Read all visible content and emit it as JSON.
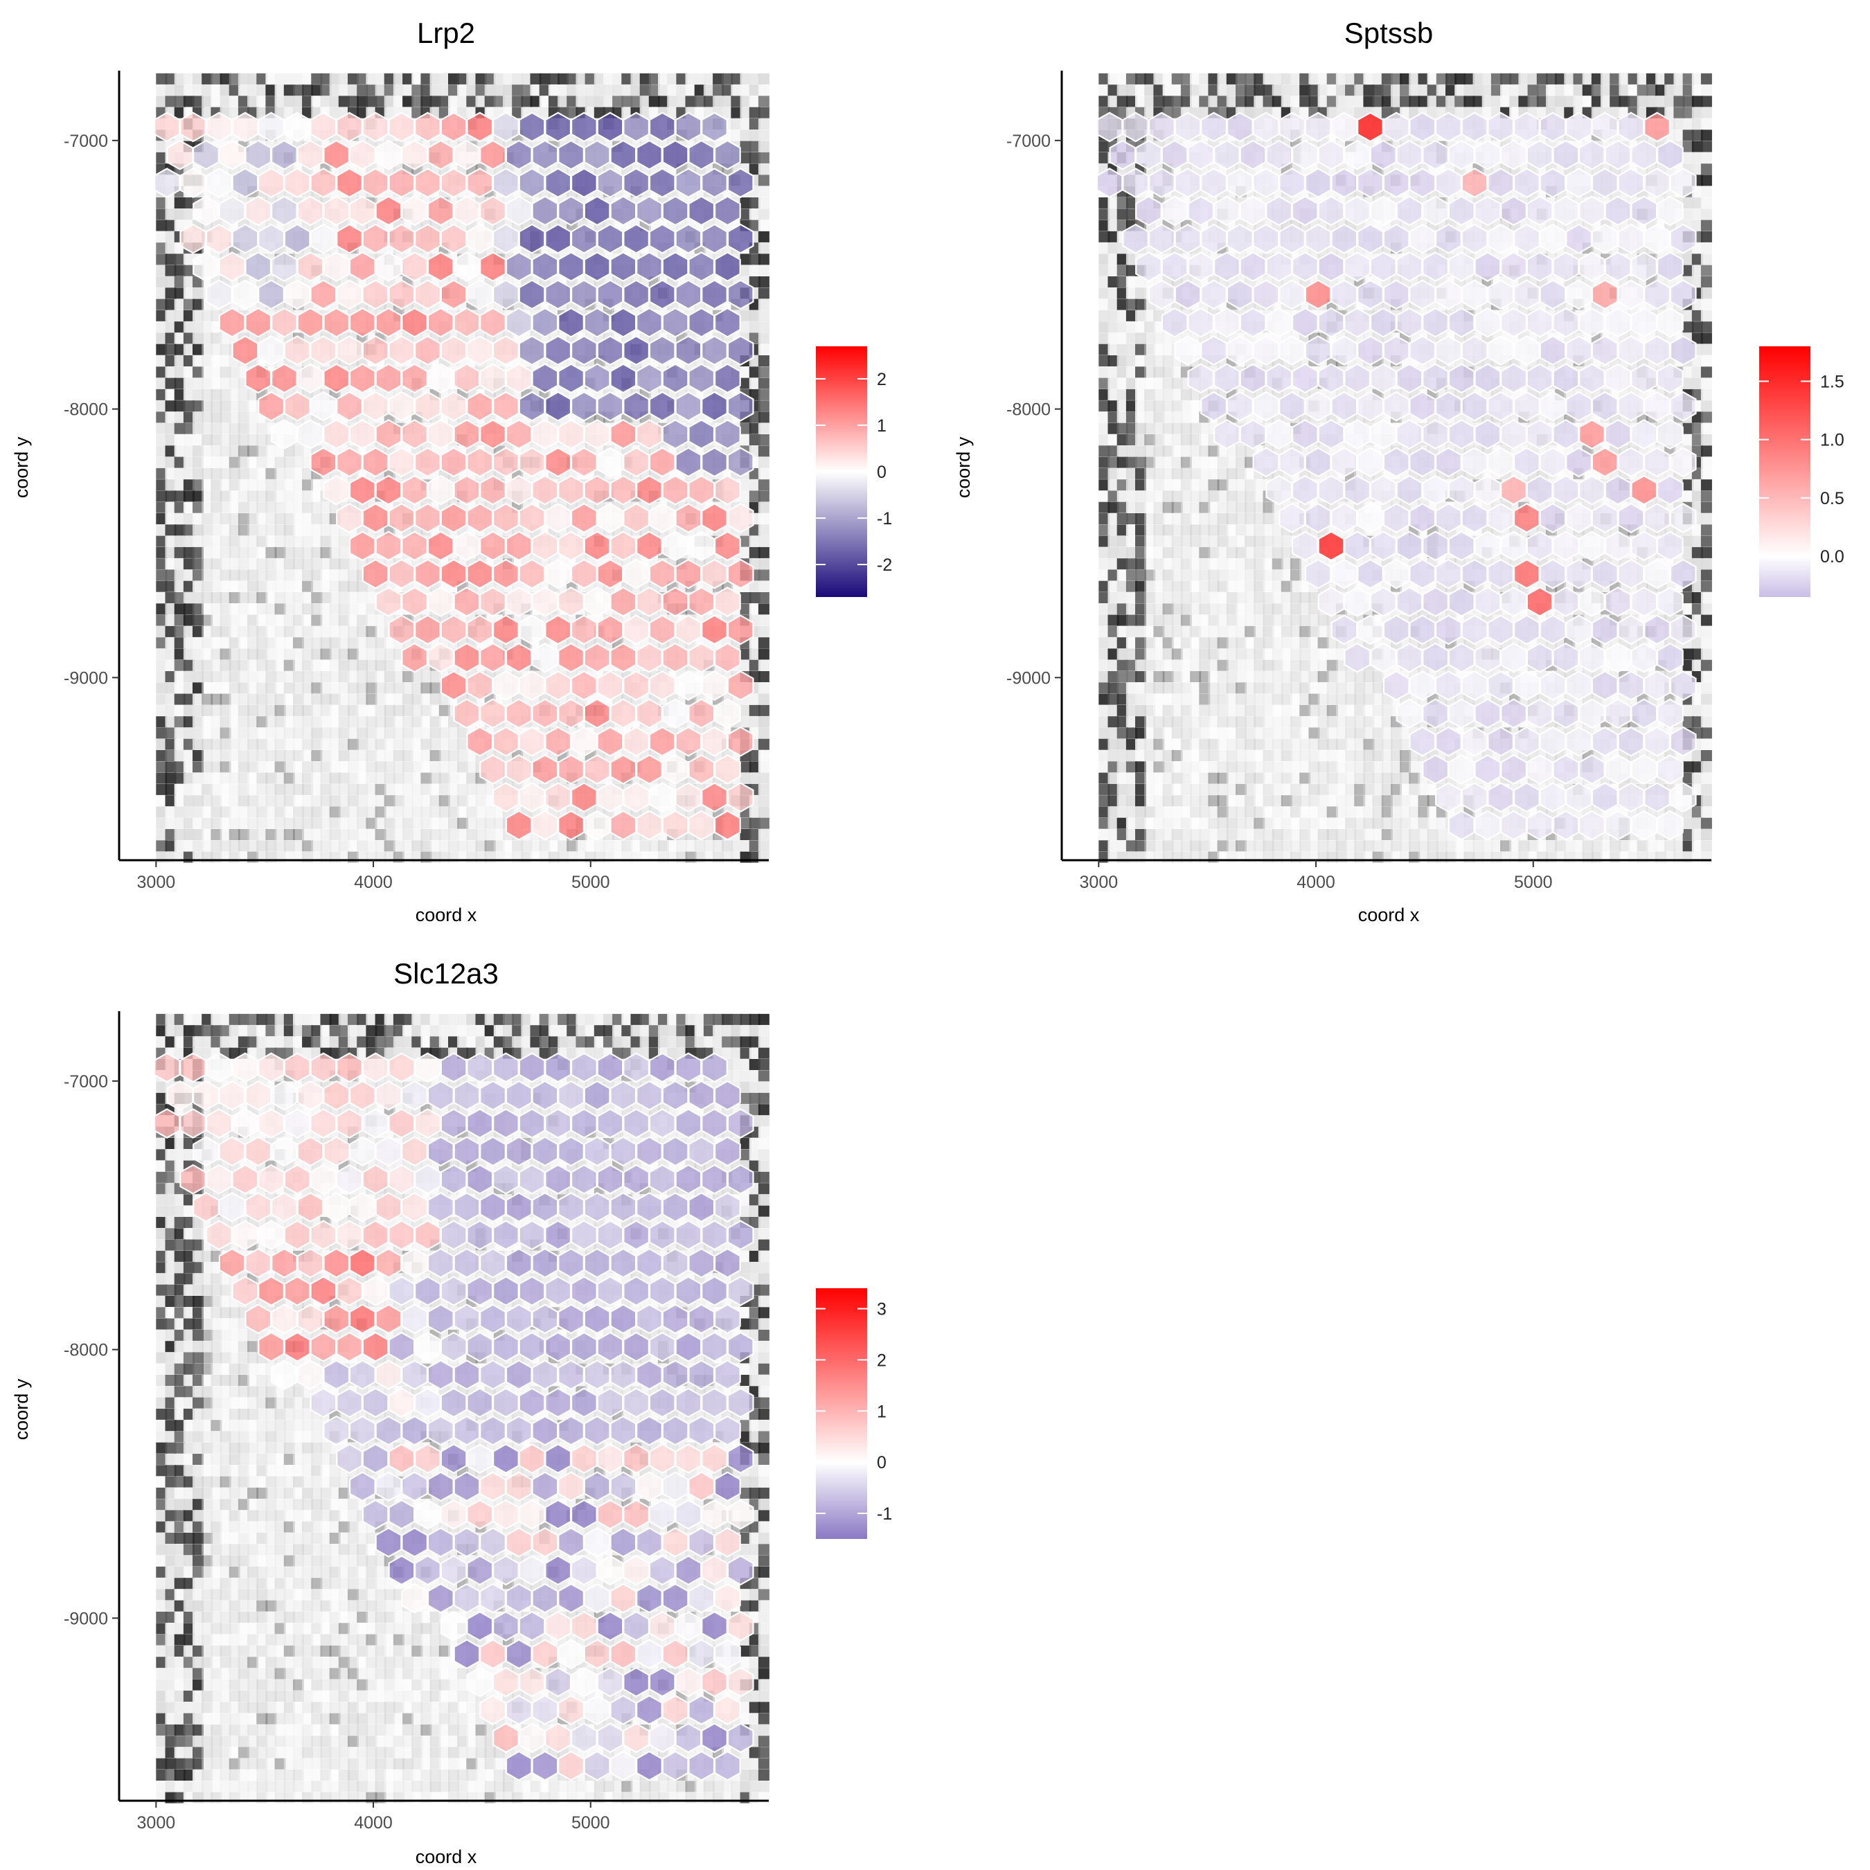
{
  "chart_data": [
    {
      "type": "heatmap",
      "title": "Lrp2",
      "xlabel": "coord x",
      "ylabel": "coord y",
      "xlim": [
        2830,
        5820
      ],
      "ylim": [
        -9680,
        -6740
      ],
      "xticks": [
        3000,
        4000,
        5000
      ],
      "yticks": [
        -7000,
        -8000,
        -9000
      ],
      "grid": false,
      "legend": "right",
      "legend_ticks": [
        2,
        1,
        0,
        -1,
        -2
      ],
      "legend_range": [
        -2.7,
        2.7
      ],
      "colors": {
        "low": "#1a0a7a",
        "mid": "#ffffff",
        "high": "#ff0000"
      },
      "pattern": "lrp2"
    },
    {
      "type": "heatmap",
      "title": "Sptssb",
      "xlabel": "coord x",
      "ylabel": "coord y",
      "xlim": [
        2830,
        5820
      ],
      "ylim": [
        -9680,
        -6740
      ],
      "xticks": [
        3000,
        4000,
        5000
      ],
      "yticks": [
        -7000,
        -8000,
        -9000
      ],
      "grid": false,
      "legend": "right",
      "legend_ticks": [
        1.5,
        1.0,
        0.5,
        0.0
      ],
      "legend_range": [
        -0.35,
        1.8
      ],
      "colors": {
        "low": "#c9bde6",
        "mid": "#ffffff",
        "high": "#ff0000"
      },
      "pattern": "sptssb"
    },
    {
      "type": "heatmap",
      "title": "Slc12a3",
      "xlabel": "coord x",
      "ylabel": "coord y",
      "xlim": [
        2830,
        5820
      ],
      "ylim": [
        -9680,
        -6740
      ],
      "xticks": [
        3000,
        4000,
        5000
      ],
      "yticks": [
        -7000,
        -8000,
        -9000
      ],
      "grid": false,
      "legend": "right",
      "legend_ticks": [
        3,
        2,
        1,
        0,
        -1
      ],
      "legend_range": [
        -1.5,
        3.4
      ],
      "colors": {
        "low": "#8a78c4",
        "mid": "#ffffff",
        "high": "#ff0000"
      },
      "pattern": "slc12a3"
    }
  ]
}
